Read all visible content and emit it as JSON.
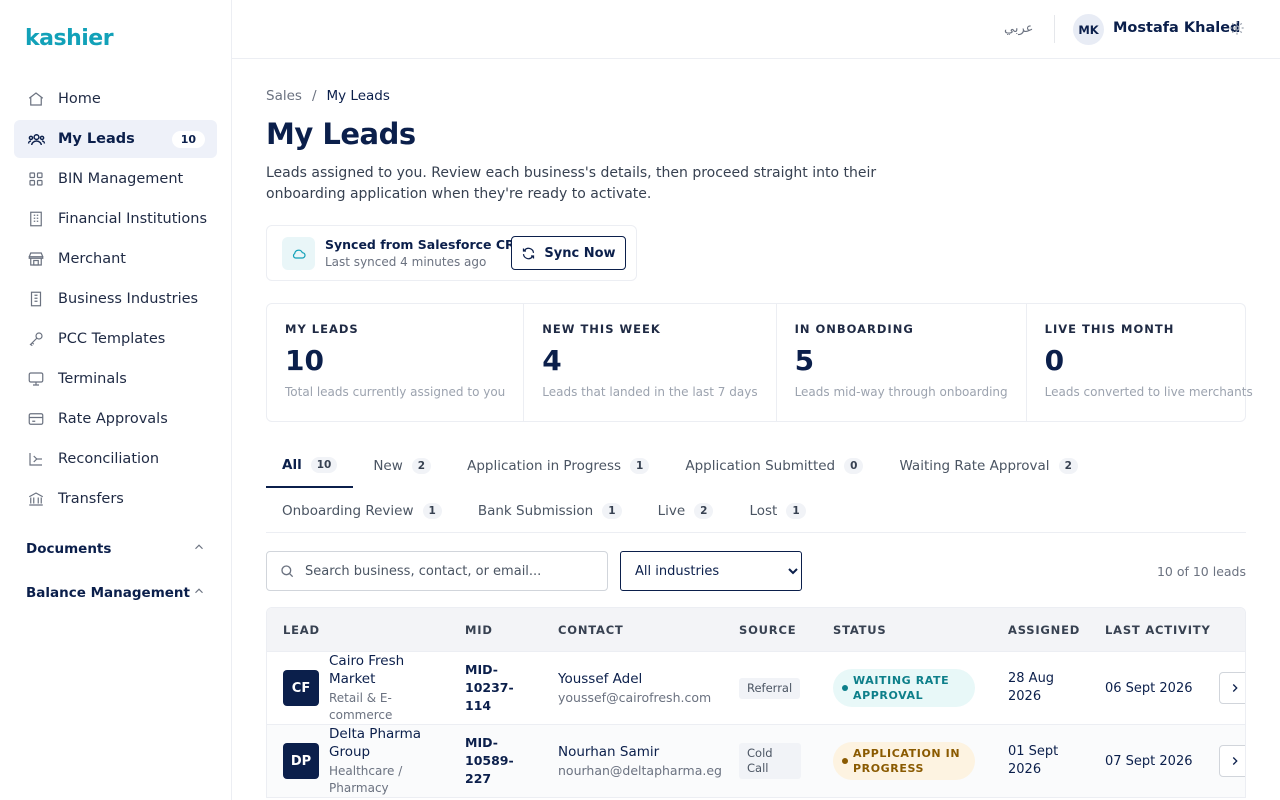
{
  "app": {
    "logo_text": "kashier",
    "brand_color": "#12a1b8",
    "primary_color": "#0b1f4b"
  },
  "sidebar": {
    "items": [
      {
        "label": "Home",
        "icon": "home-icon"
      },
      {
        "label": "My Leads",
        "icon": "users-icon",
        "badge": "10",
        "active": true
      },
      {
        "label": "BIN Management",
        "icon": "grid-icon"
      },
      {
        "label": "Financial Institutions",
        "icon": "building-icon"
      },
      {
        "label": "Merchant",
        "icon": "store-icon"
      },
      {
        "label": "Business Industries",
        "icon": "office-icon"
      },
      {
        "label": "PCC Templates",
        "icon": "key-icon"
      },
      {
        "label": "Terminals",
        "icon": "monitor-icon"
      },
      {
        "label": "Rate Approvals",
        "icon": "card-icon"
      },
      {
        "label": "Reconciliation",
        "icon": "reconcile-icon"
      },
      {
        "label": "Transfers",
        "icon": "bank-icon"
      }
    ],
    "sections": [
      {
        "label": "Documents",
        "icon": "chevron-up-icon"
      },
      {
        "label": "Balance Management",
        "icon": "chevron-up-icon"
      }
    ]
  },
  "topbar": {
    "language": "عربي",
    "user_initials": "MK",
    "user_name": "Mostafa Khaled"
  },
  "breadcrumb": {
    "parent": "Sales",
    "separator": "/",
    "current": "My Leads"
  },
  "page": {
    "title": "My Leads",
    "subtitle": "Leads assigned to you. Review each business's details, then proceed straight into their onboarding application when they're ready to activate."
  },
  "sync": {
    "title": "Synced from Salesforce CRM",
    "subtitle": "Last synced 4 minutes ago",
    "button": "Sync Now"
  },
  "stats": [
    {
      "label": "MY LEADS",
      "value": "10",
      "desc": "Total leads currently assigned to you"
    },
    {
      "label": "NEW THIS WEEK",
      "value": "4",
      "desc": "Leads that landed in the last 7 days"
    },
    {
      "label": "IN ONBOARDING",
      "value": "5",
      "desc": "Leads mid-way through onboarding"
    },
    {
      "label": "LIVE THIS MONTH",
      "value": "0",
      "desc": "Leads converted to live merchants"
    }
  ],
  "tabs": [
    {
      "label": "All",
      "count": "10",
      "active": true
    },
    {
      "label": "New",
      "count": "2"
    },
    {
      "label": "Application in Progress",
      "count": "1"
    },
    {
      "label": "Application Submitted",
      "count": "0"
    },
    {
      "label": "Waiting Rate Approval",
      "count": "2"
    },
    {
      "label": "Onboarding Review",
      "count": "1"
    },
    {
      "label": "Bank Submission",
      "count": "1"
    },
    {
      "label": "Live",
      "count": "2"
    },
    {
      "label": "Lost",
      "count": "1"
    }
  ],
  "filters": {
    "search_placeholder": "Search business, contact, or email...",
    "industry_selected": "All industries",
    "lead_count": "10 of 10 leads"
  },
  "table": {
    "headers": [
      "LEAD",
      "MID",
      "CONTACT",
      "SOURCE",
      "STATUS",
      "ASSIGNED",
      "LAST ACTIVITY"
    ],
    "rows": [
      {
        "initials": "CF",
        "name": "Cairo Fresh Market",
        "industry": "Retail & E-commerce",
        "mid": "MID-10237-114",
        "contact_name": "Youssef Adel",
        "contact_email": "youssef@cairofresh.com",
        "source": "Referral",
        "status": "WAITING RATE APPROVAL",
        "assigned": "28 Aug 2026",
        "last_activity": "06 Sept 2026"
      },
      {
        "initials": "DP",
        "name": "Delta Pharma Group",
        "industry": "Healthcare / Pharmacy",
        "mid": "MID-10589-227",
        "contact_name": "Nourhan Samir",
        "contact_email": "nourhan@deltapharma.eg",
        "source": "Cold Call",
        "status": "APPLICATION IN PROGRESS",
        "assigned": "01 Sept 2026",
        "last_activity": "07 Sept 2026"
      }
    ]
  }
}
